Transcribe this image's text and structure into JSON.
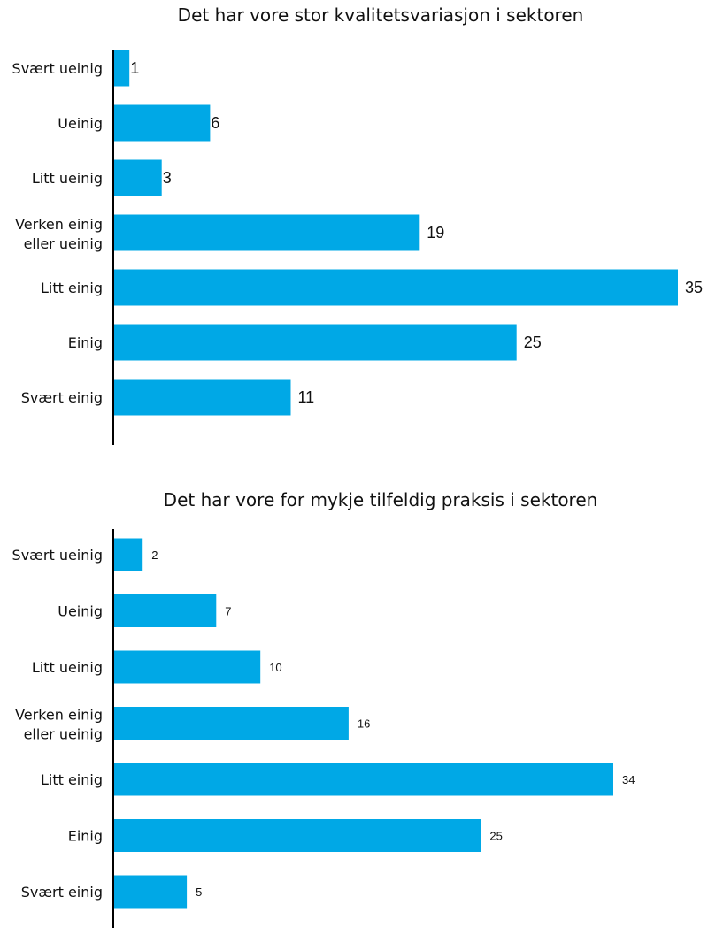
{
  "colors": {
    "bar": "#00A8E6",
    "axis": "#000000",
    "text": "#111111"
  },
  "chart_data": [
    {
      "type": "bar",
      "orientation": "horizontal",
      "title": "Det har vore stor kvalitetsvariasjon i sektoren",
      "categories": [
        "Svært ueinig",
        "Ueinig",
        "Litt ueinig",
        "Verken einig eller ueinig",
        "Litt einig",
        "Einig",
        "Svært einig"
      ],
      "values": [
        1,
        6,
        3,
        19,
        35,
        25,
        11
      ],
      "xlim": [
        0,
        35
      ],
      "grid": false,
      "legend": "none"
    },
    {
      "type": "bar",
      "orientation": "horizontal",
      "title": "Det har vore for mykje tilfeldig praksis i sektoren",
      "categories": [
        "Svært ueinig",
        "Ueinig",
        "Litt ueinig",
        "Verken einig eller ueinig",
        "Litt einig",
        "Einig",
        "Svært einig"
      ],
      "values": [
        2,
        7,
        10,
        16,
        34,
        25,
        5
      ],
      "xlim": [
        0,
        34
      ],
      "grid": false,
      "legend": "none"
    }
  ]
}
